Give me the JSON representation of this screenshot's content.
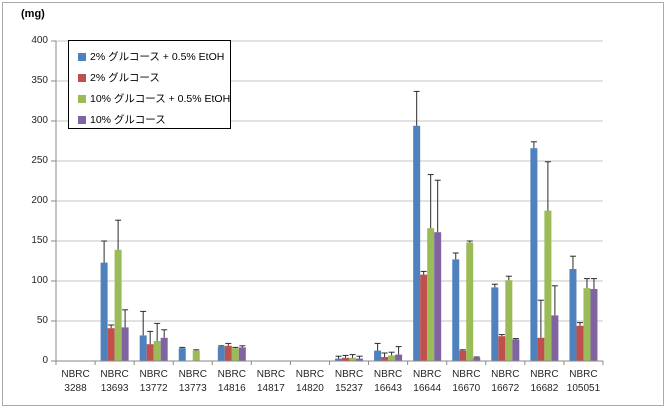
{
  "unit_label": "(mg)",
  "chart_data": {
    "type": "bar",
    "title": "",
    "xlabel": "",
    "ylabel": "(mg)",
    "ylim": [
      0,
      400
    ],
    "y_ticks": [
      0,
      50,
      100,
      150,
      200,
      250,
      300,
      350,
      400
    ],
    "grid": true,
    "legend_position": "top-left-inside",
    "error_bars": "plus-direction",
    "categories": [
      "NBRC 3288",
      "NBRC 13693",
      "NBRC 13772",
      "NBRC 13773",
      "NBRC 14816",
      "NBRC 14817",
      "NBRC 14820",
      "NBRC 15237",
      "NBRC 16643",
      "NBRC 16644",
      "NBRC 16670",
      "NBRC 16672",
      "NBRC 16682",
      "NBRC 105051"
    ],
    "series": [
      {
        "name": "2% グルコース + 0.5% EtOH",
        "color": "#4F81BD",
        "values": [
          0,
          123,
          32,
          16,
          18,
          0,
          0,
          3,
          13,
          294,
          127,
          92,
          266,
          115
        ],
        "errors_up": [
          0,
          27,
          30,
          1,
          1,
          0,
          0,
          3,
          9,
          43,
          8,
          4,
          8,
          16
        ]
      },
      {
        "name": "2% グルコース",
        "color": "#C0504D",
        "values": [
          0,
          41,
          21,
          0,
          19,
          0,
          0,
          4,
          5,
          108,
          13,
          31,
          29,
          44
        ],
        "errors_up": [
          0,
          4,
          16,
          0,
          3,
          0,
          0,
          3,
          5,
          4,
          1,
          2,
          47,
          4
        ]
      },
      {
        "name": "10% グルコース + 0.5% EtOH",
        "color": "#9BBB59",
        "values": [
          0,
          139,
          25,
          13,
          16,
          0,
          0,
          4,
          7,
          166,
          148,
          101,
          188,
          91
        ],
        "errors_up": [
          0,
          37,
          22,
          1,
          1,
          0,
          0,
          4,
          4,
          67,
          2,
          5,
          61,
          12
        ]
      },
      {
        "name": "10% グルコース",
        "color": "#8064A2",
        "values": [
          0,
          42,
          29,
          0,
          17,
          0,
          0,
          3,
          8,
          161,
          4,
          27,
          57,
          90
        ],
        "errors_up": [
          0,
          22,
          10,
          0,
          2,
          0,
          0,
          3,
          10,
          65,
          1,
          1,
          37,
          13
        ]
      }
    ],
    "colors": {
      "gridline": "#C6C6C6",
      "axis": "#898989",
      "error_bar": "#2B2B2B",
      "outer_border": "#ABABAB",
      "text": "#262626"
    }
  }
}
